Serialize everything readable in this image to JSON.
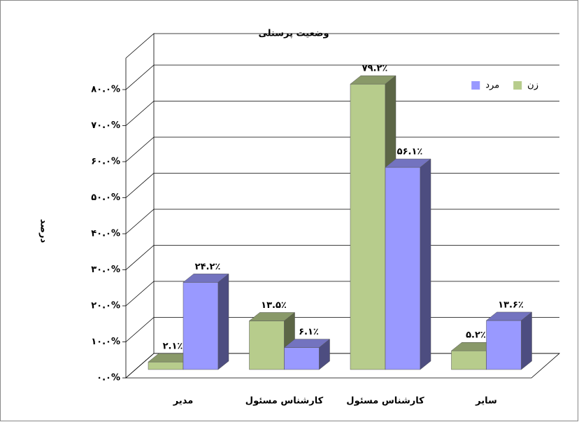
{
  "chart_data": {
    "type": "bar3d",
    "title": "وضعیت پرسنلی",
    "y_label": "درصد",
    "categories": [
      "مدير",
      "کارشناس مسئول",
      "کارشناس مسئول",
      "ساير"
    ],
    "series": [
      {
        "name": "زن",
        "color": "#b7cc8c",
        "values": [
          2.1,
          13.5,
          79.2,
          5.2
        ],
        "value_labels": [
          "۲.۱٪",
          "۱۳.۵٪",
          "۷۹.۲٪",
          "۵.۲٪"
        ]
      },
      {
        "name": "مرد",
        "color": "#9999ff",
        "values": [
          24.2,
          6.1,
          56.1,
          13.6
        ],
        "value_labels": [
          "۲۴.۲٪",
          "۶.۱٪",
          "۵۶.۱٪",
          "۱۳.۶٪"
        ]
      }
    ],
    "ylim": [
      0,
      80
    ],
    "yticks": [
      {
        "value": 0,
        "label": "۰.۰%"
      },
      {
        "value": 10,
        "label": "۱۰.۰%"
      },
      {
        "value": 20,
        "label": "۲۰.۰%"
      },
      {
        "value": 30,
        "label": "۳۰.۰%"
      },
      {
        "value": 40,
        "label": "۴۰.۰%"
      },
      {
        "value": 50,
        "label": "۵۰.۰%"
      },
      {
        "value": 60,
        "label": "۶۰.۰%"
      },
      {
        "value": 70,
        "label": "۷۰.۰%"
      },
      {
        "value": 80,
        "label": "۸۰.۰%"
      }
    ],
    "grid": true,
    "legend": "top-right"
  }
}
